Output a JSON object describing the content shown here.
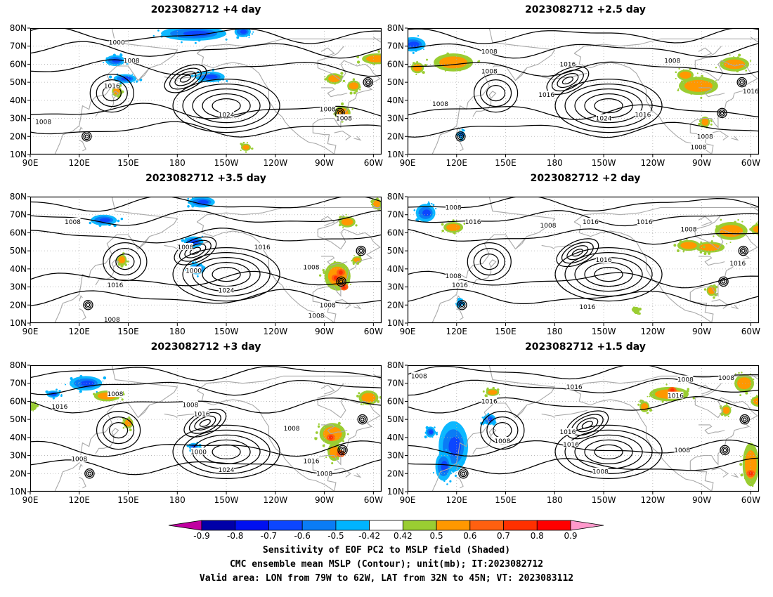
{
  "panels": [
    {
      "title": "2023082712 +4 day",
      "labels": [
        "1000",
        "1008",
        "1016",
        "1024",
        "1008",
        "1008",
        "1008"
      ],
      "pos": [
        [
          "E",
          143,
          72
        ],
        [
          "E",
          152,
          62
        ],
        [
          "E",
          140,
          48
        ],
        [
          "W",
          150,
          32
        ],
        [
          "W",
          88,
          35
        ],
        [
          "W",
          78,
          30
        ],
        [
          "E",
          98,
          28
        ]
      ],
      "neg": [
        [
          -170,
          77,
          20,
          4
        ],
        [
          -140,
          78,
          5,
          3
        ],
        [
          -160,
          53,
          9,
          3
        ],
        [
          148,
          52,
          7,
          2.5
        ],
        [
          142,
          62,
          6,
          3
        ]
      ],
      "warm": [
        [
          -79,
          33,
          5,
          4
        ],
        [
          -84,
          52,
          5,
          3
        ],
        [
          -72,
          48,
          4,
          3
        ],
        [
          -58,
          63,
          9,
          3
        ],
        [
          -138,
          14,
          3,
          2
        ],
        [
          143,
          45,
          3,
          3
        ]
      ]
    },
    {
      "title": "2023082712 +2.5 day",
      "labels": [
        "1008",
        "1008",
        "1016",
        "1016",
        "1024",
        "1016",
        "1008",
        "1008",
        "1016",
        "1008",
        "1008"
      ],
      "pos": [
        [
          "E",
          140,
          67
        ],
        [
          "E",
          140,
          56
        ],
        [
          "W",
          172,
          60
        ],
        [
          "E",
          175,
          43
        ],
        [
          "W",
          150,
          30
        ],
        [
          "W",
          126,
          32
        ],
        [
          "E",
          110,
          38
        ],
        [
          "W",
          108,
          62
        ],
        [
          "W",
          60,
          45
        ],
        [
          "W",
          88,
          20
        ],
        [
          "W",
          92,
          14
        ]
      ],
      "neg": [
        [
          93,
          71,
          8,
          4
        ],
        [
          123,
          21,
          2,
          2
        ]
      ],
      "warm": [
        [
          118,
          61,
          12,
          5
        ],
        [
          96,
          58,
          4,
          3
        ],
        [
          -92,
          48,
          12,
          5
        ],
        [
          -70,
          60,
          9,
          4
        ],
        [
          -88,
          28,
          3,
          3
        ],
        [
          -100,
          54,
          5,
          3
        ]
      ]
    },
    {
      "title": "2023082712 +3.5 day",
      "labels": [
        "1008",
        "1008",
        "1000",
        "1016",
        "1016",
        "1024",
        "1008",
        "1008",
        "1008",
        "1008"
      ],
      "pos": [
        [
          "E",
          116,
          66
        ],
        [
          "W",
          175,
          52
        ],
        [
          "E",
          190,
          39
        ],
        [
          "W",
          128,
          52
        ],
        [
          "E",
          142,
          31
        ],
        [
          "W",
          150,
          28
        ],
        [
          "W",
          98,
          41
        ],
        [
          "W",
          88,
          20
        ],
        [
          "W",
          95,
          14
        ],
        [
          "E",
          140,
          12
        ]
      ],
      "neg": [
        [
          135,
          67,
          8,
          3
        ],
        [
          -165,
          77,
          8,
          3
        ],
        [
          -170,
          55,
          6,
          3
        ],
        [
          -168,
          40,
          5,
          3
        ]
      ],
      "warm": [
        [
          -82,
          36,
          8,
          8
        ],
        [
          -76,
          66,
          5,
          3
        ],
        [
          -58,
          76,
          3,
          3
        ],
        [
          146,
          45,
          3,
          3
        ],
        [
          -70,
          45,
          3,
          2
        ]
      ],
      "warmSeeds": [
        [
          -83,
          35
        ],
        [
          -80,
          38
        ],
        [
          -78,
          30
        ]
      ]
    },
    {
      "title": "2023082712 +2 day",
      "labels": [
        "1008",
        "1016",
        "1008",
        "1016",
        "1016",
        "1008",
        "1008",
        "1016",
        "1016",
        "1016",
        "1016"
      ],
      "pos": [
        [
          "E",
          118,
          74
        ],
        [
          "E",
          130,
          66
        ],
        [
          "E",
          176,
          64
        ],
        [
          "W",
          158,
          66
        ],
        [
          "W",
          125,
          66
        ],
        [
          "W",
          98,
          62
        ],
        [
          "E",
          118,
          36
        ],
        [
          "E",
          122,
          31
        ],
        [
          "W",
          150,
          45
        ],
        [
          "W",
          160,
          19
        ],
        [
          "W",
          68,
          43
        ]
      ],
      "neg": [
        [
          101,
          71,
          6,
          5
        ],
        [
          122,
          21,
          2,
          2
        ]
      ],
      "warm": [
        [
          118,
          63,
          6,
          3
        ],
        [
          -85,
          52,
          9,
          3
        ],
        [
          -72,
          61,
          10,
          5
        ],
        [
          -98,
          53,
          7,
          3
        ],
        [
          -84,
          28,
          3,
          3
        ],
        [
          -130,
          17,
          2,
          2
        ],
        [
          -55,
          62,
          5,
          3
        ]
      ]
    },
    {
      "title": "2023082712 +3 day",
      "labels": [
        "1008",
        "1016",
        "1008",
        "1016",
        "1000",
        "1024",
        "1008",
        "1016",
        "1008",
        "1008"
      ],
      "pos": [
        [
          "E",
          142,
          64
        ],
        [
          "E",
          108,
          57
        ],
        [
          "W",
          172,
          58
        ],
        [
          "W",
          165,
          53
        ],
        [
          "E",
          193,
          32
        ],
        [
          "W",
          150,
          22
        ],
        [
          "W",
          110,
          45
        ],
        [
          "W",
          98,
          27
        ],
        [
          "E",
          120,
          28
        ],
        [
          "W",
          90,
          20
        ]
      ],
      "neg": [
        [
          124,
          70,
          10,
          4
        ],
        [
          104,
          64,
          4,
          2
        ],
        [
          190,
          35,
          3,
          2
        ]
      ],
      "warm": [
        [
          -85,
          42,
          8,
          6
        ],
        [
          -84,
          32,
          4,
          5
        ],
        [
          -63,
          62,
          6,
          4
        ],
        [
          150,
          48,
          3,
          3
        ],
        [
          137,
          63,
          8,
          3
        ],
        [
          92,
          57,
          2,
          2
        ]
      ],
      "warmSeeds": [
        [
          -86,
          40
        ],
        [
          -80,
          31
        ]
      ]
    },
    {
      "title": "2023082712 +1.5 day",
      "labels": [
        "1008",
        "1016",
        "1016",
        "1008",
        "1016",
        "1008",
        "1008",
        "1016",
        "1016",
        "1008",
        "1008"
      ],
      "pos": [
        [
          "E",
          97,
          74
        ],
        [
          "E",
          140,
          60
        ],
        [
          "W",
          168,
          68
        ],
        [
          "W",
          100,
          72
        ],
        [
          "W",
          106,
          63
        ],
        [
          "W",
          75,
          73
        ],
        [
          "E",
          148,
          38
        ],
        [
          "E",
          188,
          43
        ],
        [
          "E",
          190,
          36
        ],
        [
          "W",
          152,
          21
        ],
        [
          "W",
          102,
          33
        ]
      ],
      "neg": [
        [
          118,
          35,
          9,
          14
        ],
        [
          112,
          24,
          5,
          8
        ],
        [
          104,
          43,
          3,
          3
        ],
        [
          140,
          50,
          4,
          3
        ]
      ],
      "warm": [
        [
          -110,
          64,
          12,
          4
        ],
        [
          -64,
          70,
          6,
          5
        ],
        [
          -55,
          60,
          5,
          3
        ],
        [
          -60,
          25,
          5,
          12
        ],
        [
          -75,
          55,
          3,
          3
        ],
        [
          -125,
          57,
          3,
          3
        ],
        [
          142,
          65,
          4,
          2
        ]
      ],
      "warmSeeds": [
        [
          -60,
          20
        ],
        [
          -108,
          66
        ]
      ]
    }
  ],
  "axes": {
    "lat_ticks": [
      "80N",
      "70N",
      "60N",
      "50N",
      "40N",
      "30N",
      "20N",
      "10N"
    ],
    "lon_ticks": [
      "90E",
      "120E",
      "150E",
      "180",
      "150W",
      "120W",
      "90W",
      "60W"
    ],
    "lon_range": [
      90,
      305
    ],
    "lat_range": [
      10,
      80
    ]
  },
  "colorbar": {
    "levels": [
      "-0.9",
      "-0.8",
      "-0.7",
      "-0.6",
      "-0.5",
      "-0.42",
      "0.42",
      "0.5",
      "0.6",
      "0.7",
      "0.8",
      "0.9"
    ],
    "colors": [
      "#0000a8",
      "#0010f0",
      "#0c46ff",
      "#0a7cf5",
      "#00b4ff",
      "#ffffff",
      "#9acd32",
      "#ff9800",
      "#ff6010",
      "#ff3000",
      "#ff0000"
    ],
    "left_arrow": "#c000a0",
    "right_arrow": "#ff99cc"
  },
  "caption": {
    "line1": "Sensitivity of EOF PC2 to MSLP field (Shaded)",
    "line2": "CMC ensemble mean MSLP (Contour); unit(mb); IT:2023082712",
    "line3": "Valid area: LON from 79W to 62W, LAT from 32N to 45N; VT: 2023083112"
  },
  "colors": {
    "contour": "#000000",
    "coast": "#a8a8a8",
    "grid": "#b0b0b0"
  }
}
